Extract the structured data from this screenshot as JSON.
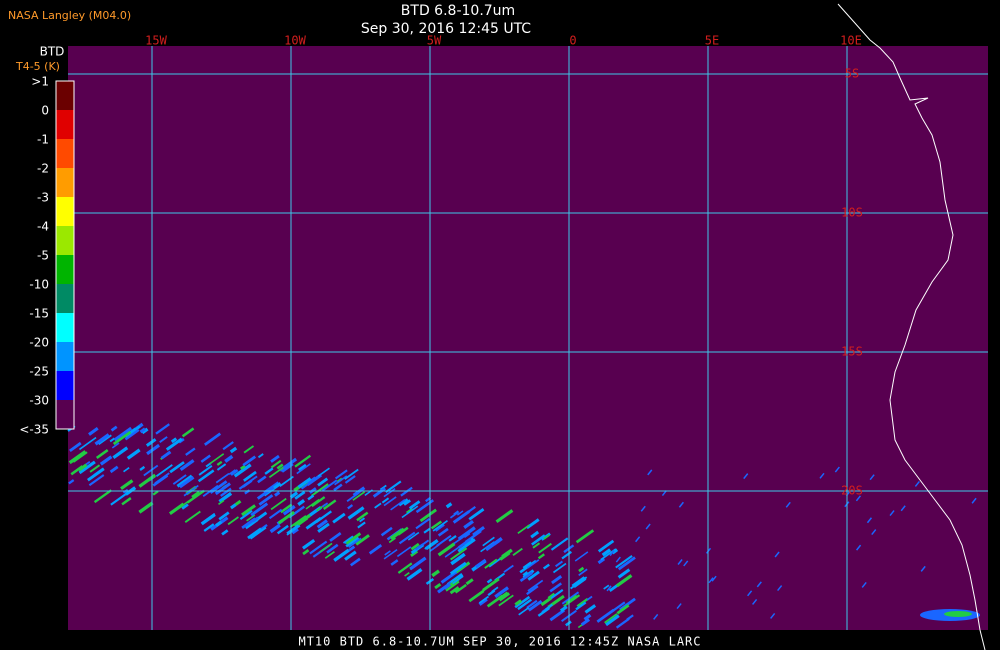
{
  "header": {
    "source": "NASA Langley (M04.0)",
    "title": "BTD 6.8-10.7um",
    "time": "Sep 30, 2016 12:45 UTC"
  },
  "colorbar": {
    "title": "BTD",
    "subtitle": "T4-5 (K)",
    "labels": [
      ">1",
      "0",
      "-1",
      "-2",
      "-3",
      "-4",
      "-5",
      "-10",
      "-15",
      "-20",
      "-25",
      "-30",
      "<-35"
    ]
  },
  "map": {
    "lon_labels": [
      "15W",
      "10W",
      "5W",
      "0",
      "5E",
      "10E"
    ],
    "lat_labels": [
      "5S",
      "10S",
      "15S",
      "20S"
    ]
  },
  "footer": "MT10  BTD 6.8-10.7UM  SEP 30, 2016 12:45Z  NASA LARC"
}
